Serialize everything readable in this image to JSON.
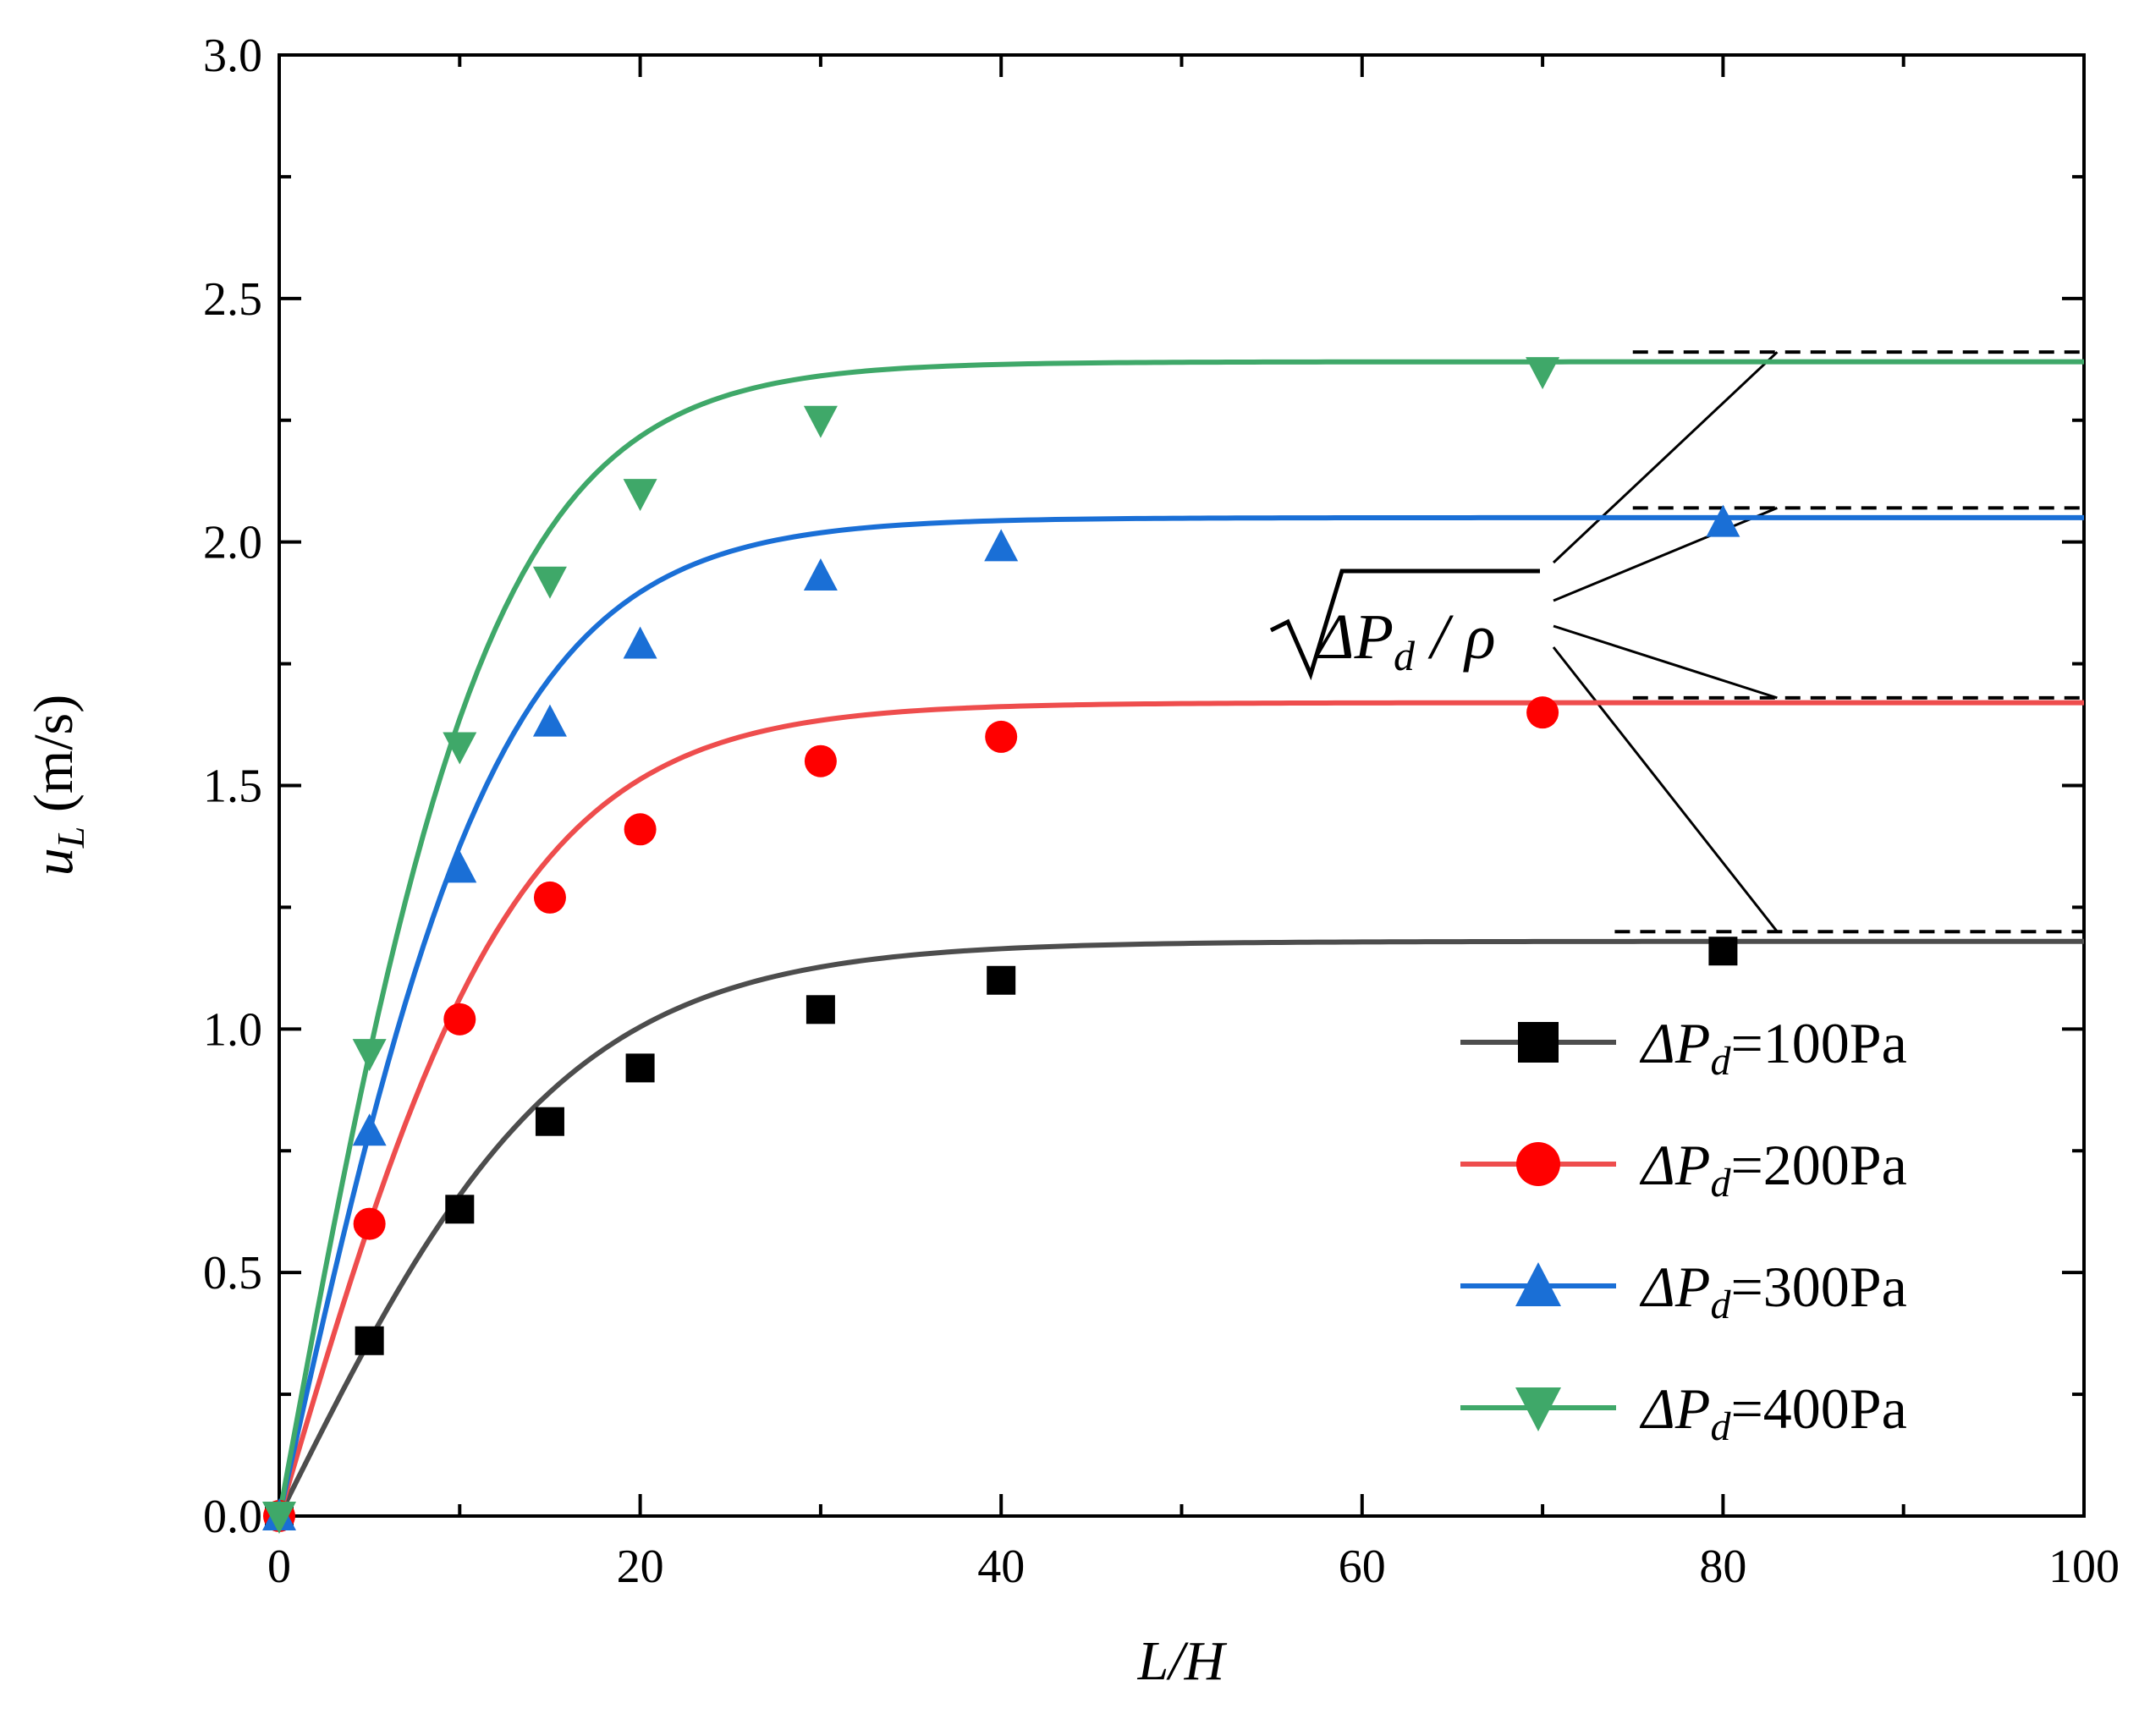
{
  "chart_data": {
    "type": "line",
    "xlabel": "L/H",
    "ylabel": "u_L (m/s)",
    "ylabel_var": "u",
    "ylabel_sub": "L",
    "ylabel_unit": " (m/s)",
    "xlim": [
      0,
      100
    ],
    "ylim": [
      0,
      3.0
    ],
    "x_ticks": [
      0,
      20,
      40,
      60,
      80,
      100
    ],
    "x_tick_labels": [
      "0",
      "20",
      "40",
      "60",
      "80",
      "100"
    ],
    "y_ticks": [
      0,
      0.5,
      1.0,
      1.5,
      2.0,
      2.5,
      3.0
    ],
    "y_tick_labels": [
      "0.0",
      "0.5",
      "1.0",
      "1.5",
      "2.0",
      "2.5",
      "3.0"
    ],
    "grid": false,
    "legend_position": "bottom-right",
    "series": [
      {
        "name": "ΔP_d=100Pa",
        "legend_delta_p": "ΔP",
        "legend_sub": "d",
        "legend_value": "=100Pa",
        "marker": "square",
        "line_color": "#4d4d4d",
        "marker_color": "#000000",
        "x": [
          0,
          5,
          10,
          15,
          20,
          30,
          40,
          80
        ],
        "values": [
          0,
          0.36,
          0.63,
          0.81,
          0.92,
          1.04,
          1.1,
          1.16
        ],
        "asymptote": 1.18
      },
      {
        "name": "ΔP_d=200Pa",
        "legend_delta_p": "ΔP",
        "legend_sub": "d",
        "legend_value": "=200Pa",
        "marker": "circle",
        "line_color": "#ee4d4d",
        "marker_color": "#ff0000",
        "x": [
          0,
          5,
          10,
          15,
          20,
          30,
          40,
          70
        ],
        "values": [
          0,
          0.6,
          1.02,
          1.27,
          1.41,
          1.55,
          1.6,
          1.65
        ],
        "asymptote": 1.67
      },
      {
        "name": "ΔP_d=300Pa",
        "legend_delta_p": "ΔP",
        "legend_sub": "d",
        "legend_value": "=300Pa",
        "marker": "triangle-up",
        "line_color": "#1a6fd6",
        "marker_color": "#1a6fd6",
        "x": [
          0,
          5,
          10,
          15,
          20,
          30,
          40,
          80
        ],
        "values": [
          0,
          0.79,
          1.33,
          1.63,
          1.79,
          1.93,
          1.99,
          2.04
        ],
        "asymptote": 2.05
      },
      {
        "name": "ΔP_d=400Pa",
        "legend_delta_p": "ΔP",
        "legend_sub": "d",
        "legend_value": "=400Pa",
        "marker": "triangle-down",
        "line_color": "#3fa869",
        "marker_color": "#3fa869",
        "x": [
          0,
          5,
          10,
          15,
          20,
          30,
          70
        ],
        "values": [
          0,
          0.95,
          1.58,
          1.92,
          2.1,
          2.25,
          2.35
        ],
        "asymptote": 2.37
      }
    ],
    "annotation": {
      "text": "√(ΔP_d / ρ)",
      "delta_p": "ΔP",
      "sub": "d",
      "rest": " / ρ",
      "dashed_lines": [
        2.39,
        2.07,
        1.68,
        1.2
      ],
      "dashed_x_start": [
        75,
        75,
        75,
        74
      ],
      "dashed_x_end": 100
    }
  }
}
